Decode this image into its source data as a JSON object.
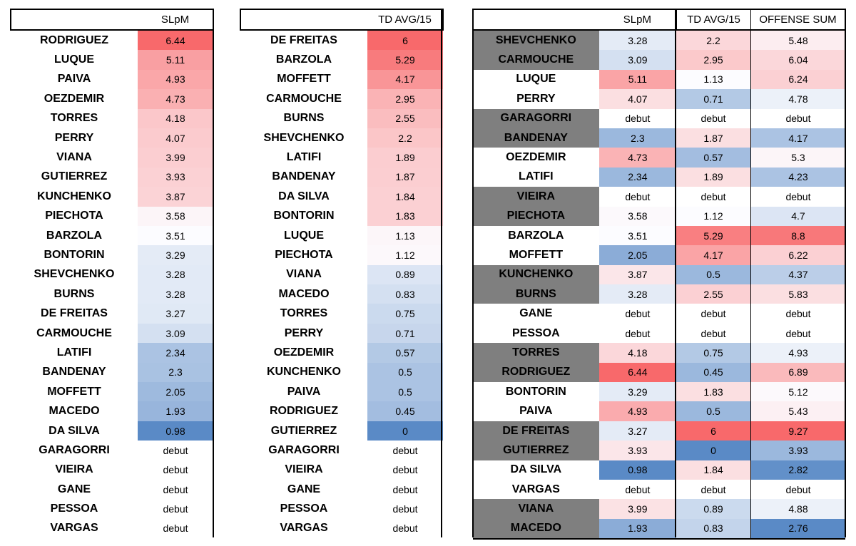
{
  "colors": {
    "high": "#f8696b",
    "mid": "#fcfcff",
    "low": "#5a8ac6",
    "highlight_gray": "#7f7f7f"
  },
  "table1": {
    "header": {
      "name": "",
      "value": "SLpM"
    },
    "rows": [
      {
        "name": "RODRIGUEZ",
        "value": "6.44",
        "heat": 1.0
      },
      {
        "name": "LUQUE",
        "value": "5.11",
        "heat": 0.63
      },
      {
        "name": "PAIVA",
        "value": "4.93",
        "heat": 0.58
      },
      {
        "name": "OEZDEMIR",
        "value": "4.73",
        "heat": 0.52
      },
      {
        "name": "TORRES",
        "value": "4.18",
        "heat": 0.36
      },
      {
        "name": "PERRY",
        "value": "4.07",
        "heat": 0.33
      },
      {
        "name": "VIANA",
        "value": "3.99",
        "heat": 0.31
      },
      {
        "name": "GUTIERREZ",
        "value": "3.93",
        "heat": 0.29
      },
      {
        "name": "KUNCHENKO",
        "value": "3.87",
        "heat": 0.28
      },
      {
        "name": "PIECHOTA",
        "value": "3.58",
        "heat": 0.05
      },
      {
        "name": "BARZOLA",
        "value": "3.51",
        "heat": 0.0
      },
      {
        "name": "BONTORIN",
        "value": "3.29",
        "heat": -0.15
      },
      {
        "name": "SHEVCHENKO",
        "value": "3.28",
        "heat": -0.16
      },
      {
        "name": "BURNS",
        "value": "3.28",
        "heat": -0.16
      },
      {
        "name": "DE FREITAS",
        "value": "3.27",
        "heat": -0.17
      },
      {
        "name": "CARMOUCHE",
        "value": "3.09",
        "heat": -0.25
      },
      {
        "name": "LATIFI",
        "value": "2.34",
        "heat": -0.5
      },
      {
        "name": "BANDENAY",
        "value": "2.3",
        "heat": -0.51
      },
      {
        "name": "MOFFETT",
        "value": "2.05",
        "heat": -0.58
      },
      {
        "name": "MACEDO",
        "value": "1.93",
        "heat": -0.62
      },
      {
        "name": "DA SILVA",
        "value": "0.98",
        "heat": -1.0
      },
      {
        "name": "GARAGORRI",
        "value": "debut",
        "heat": null
      },
      {
        "name": "VIEIRA",
        "value": "debut",
        "heat": null
      },
      {
        "name": "GANE",
        "value": "debut",
        "heat": null
      },
      {
        "name": "PESSOA",
        "value": "debut",
        "heat": null
      },
      {
        "name": "VARGAS",
        "value": "debut",
        "heat": null
      }
    ]
  },
  "table2": {
    "header": {
      "name": "",
      "value": "TD AVG/15"
    },
    "rows": [
      {
        "name": "DE FREITAS",
        "value": "6",
        "heat": 1.0
      },
      {
        "name": "BARZOLA",
        "value": "5.29",
        "heat": 0.88
      },
      {
        "name": "MOFFETT",
        "value": "4.17",
        "heat": 0.7
      },
      {
        "name": "CARMOUCHE",
        "value": "2.95",
        "heat": 0.5
      },
      {
        "name": "BURNS",
        "value": "2.55",
        "heat": 0.43
      },
      {
        "name": "SHEVCHENKO",
        "value": "2.2",
        "heat": 0.37
      },
      {
        "name": "LATIFI",
        "value": "1.89",
        "heat": 0.32
      },
      {
        "name": "BANDENAY",
        "value": "1.87",
        "heat": 0.31
      },
      {
        "name": "DA SILVA",
        "value": "1.84",
        "heat": 0.3
      },
      {
        "name": "BONTORIN",
        "value": "1.83",
        "heat": 0.3
      },
      {
        "name": "LUQUE",
        "value": "1.13",
        "heat": 0.04
      },
      {
        "name": "PIECHOTA",
        "value": "1.12",
        "heat": 0.03
      },
      {
        "name": "VIANA",
        "value": "0.89",
        "heat": -0.2
      },
      {
        "name": "MACEDO",
        "value": "0.83",
        "heat": -0.25
      },
      {
        "name": "TORRES",
        "value": "0.75",
        "heat": -0.3
      },
      {
        "name": "PERRY",
        "value": "0.71",
        "heat": -0.33
      },
      {
        "name": "OEZDEMIR",
        "value": "0.57",
        "heat": -0.45
      },
      {
        "name": "KUNCHENKO",
        "value": "0.5",
        "heat": -0.5
      },
      {
        "name": "PAIVA",
        "value": "0.5",
        "heat": -0.5
      },
      {
        "name": "RODRIGUEZ",
        "value": "0.45",
        "heat": -0.55
      },
      {
        "name": "GUTIERREZ",
        "value": "0",
        "heat": -1.0
      },
      {
        "name": "GARAGORRI",
        "value": "debut",
        "heat": null
      },
      {
        "name": "VIEIRA",
        "value": "debut",
        "heat": null
      },
      {
        "name": "GANE",
        "value": "debut",
        "heat": null
      },
      {
        "name": "PESSOA",
        "value": "debut",
        "heat": null
      },
      {
        "name": "VARGAS",
        "value": "debut",
        "heat": null
      }
    ]
  },
  "table3": {
    "header": {
      "name": "",
      "slpm": "SLpM",
      "td": "TD AVG/15",
      "sum": "OFFENSE SUM"
    },
    "rows": [
      {
        "name": "SHEVCHENKO",
        "highlight": true,
        "slpm": "3.28",
        "slpm_heat": -0.15,
        "td": "2.2",
        "td_heat": 0.25,
        "sum": "5.48",
        "sum_heat": 0.1
      },
      {
        "name": "CARMOUCHE",
        "highlight": true,
        "slpm": "3.09",
        "slpm_heat": -0.25,
        "td": "2.95",
        "td_heat": 0.35,
        "sum": "6.04",
        "sum_heat": 0.25
      },
      {
        "name": "LUQUE",
        "highlight": false,
        "slpm": "5.11",
        "slpm_heat": 0.6,
        "td": "1.13",
        "td_heat": 0.0,
        "sum": "6.24",
        "sum_heat": 0.3
      },
      {
        "name": "PERRY",
        "highlight": false,
        "slpm": "4.07",
        "slpm_heat": 0.2,
        "td": "0.71",
        "td_heat": -0.45,
        "sum": "4.78",
        "sum_heat": -0.1
      },
      {
        "name": "GARAGORRI",
        "highlight": true,
        "slpm": "debut",
        "slpm_heat": null,
        "td": "debut",
        "td_heat": null,
        "sum": "debut",
        "sum_heat": null
      },
      {
        "name": "BANDENAY",
        "highlight": true,
        "slpm": "2.3",
        "slpm_heat": -0.6,
        "td": "1.87",
        "td_heat": 0.2,
        "sum": "4.17",
        "sum_heat": -0.5
      },
      {
        "name": "OEZDEMIR",
        "highlight": false,
        "slpm": "4.73",
        "slpm_heat": 0.5,
        "td": "0.57",
        "td_heat": -0.55,
        "sum": "5.3",
        "sum_heat": 0.05
      },
      {
        "name": "LATIFI",
        "highlight": false,
        "slpm": "2.34",
        "slpm_heat": -0.6,
        "td": "1.89",
        "td_heat": 0.2,
        "sum": "4.23",
        "sum_heat": -0.5
      },
      {
        "name": "VIEIRA",
        "highlight": true,
        "slpm": "debut",
        "slpm_heat": null,
        "td": "debut",
        "td_heat": null,
        "sum": "debut",
        "sum_heat": null
      },
      {
        "name": "PIECHOTA",
        "highlight": true,
        "slpm": "3.58",
        "slpm_heat": 0.02,
        "td": "1.12",
        "td_heat": 0.0,
        "sum": "4.7",
        "sum_heat": -0.2
      },
      {
        "name": "BARZOLA",
        "highlight": false,
        "slpm": "3.51",
        "slpm_heat": 0.0,
        "td": "5.29",
        "td_heat": 0.85,
        "sum": "8.8",
        "sum_heat": 0.9
      },
      {
        "name": "MOFFETT",
        "highlight": false,
        "slpm": "2.05",
        "slpm_heat": -0.7,
        "td": "4.17",
        "td_heat": 0.6,
        "sum": "6.22",
        "sum_heat": 0.3
      },
      {
        "name": "KUNCHENKO",
        "highlight": true,
        "slpm": "3.87",
        "slpm_heat": 0.15,
        "td": "0.5",
        "td_heat": -0.6,
        "sum": "4.37",
        "sum_heat": -0.4
      },
      {
        "name": "BURNS",
        "highlight": true,
        "slpm": "3.28",
        "slpm_heat": -0.15,
        "td": "2.55",
        "td_heat": 0.3,
        "sum": "5.83",
        "sum_heat": 0.2
      },
      {
        "name": "GANE",
        "highlight": false,
        "slpm": "debut",
        "slpm_heat": null,
        "td": "debut",
        "td_heat": null,
        "sum": "debut",
        "sum_heat": null
      },
      {
        "name": "PESSOA",
        "highlight": false,
        "slpm": "debut",
        "slpm_heat": null,
        "td": "debut",
        "td_heat": null,
        "sum": "debut",
        "sum_heat": null
      },
      {
        "name": "TORRES",
        "highlight": true,
        "slpm": "4.18",
        "slpm_heat": 0.25,
        "td": "0.75",
        "td_heat": -0.45,
        "sum": "4.93",
        "sum_heat": -0.1
      },
      {
        "name": "RODRIGUEZ",
        "highlight": true,
        "slpm": "6.44",
        "slpm_heat": 1.0,
        "td": "0.45",
        "td_heat": -0.6,
        "sum": "6.89",
        "sum_heat": 0.45
      },
      {
        "name": "BONTORIN",
        "highlight": false,
        "slpm": "3.29",
        "slpm_heat": -0.15,
        "td": "1.83",
        "td_heat": 0.2,
        "sum": "5.12",
        "sum_heat": 0.02
      },
      {
        "name": "PAIVA",
        "highlight": false,
        "slpm": "4.93",
        "slpm_heat": 0.55,
        "td": "0.5",
        "td_heat": -0.6,
        "sum": "5.43",
        "sum_heat": 0.08
      },
      {
        "name": "DE FREITAS",
        "highlight": true,
        "slpm": "3.27",
        "slpm_heat": -0.15,
        "td": "6",
        "td_heat": 1.0,
        "sum": "9.27",
        "sum_heat": 1.0
      },
      {
        "name": "GUTIERREZ",
        "highlight": true,
        "slpm": "3.93",
        "slpm_heat": 0.15,
        "td": "0",
        "td_heat": -1.0,
        "sum": "3.93",
        "sum_heat": -0.6
      },
      {
        "name": "DA SILVA",
        "highlight": false,
        "slpm": "0.98",
        "slpm_heat": -1.0,
        "td": "1.84",
        "td_heat": 0.2,
        "sum": "2.82",
        "sum_heat": -0.95
      },
      {
        "name": "VARGAS",
        "highlight": false,
        "slpm": "debut",
        "slpm_heat": null,
        "td": "debut",
        "td_heat": null,
        "sum": "debut",
        "sum_heat": null
      },
      {
        "name": "VIANA",
        "highlight": true,
        "slpm": "3.99",
        "slpm_heat": 0.18,
        "td": "0.89",
        "td_heat": -0.3,
        "sum": "4.88",
        "sum_heat": -0.1
      },
      {
        "name": "MACEDO",
        "highlight": true,
        "slpm": "1.93",
        "slpm_heat": -0.7,
        "td": "0.83",
        "td_heat": -0.35,
        "sum": "2.76",
        "sum_heat": -1.0
      }
    ]
  }
}
